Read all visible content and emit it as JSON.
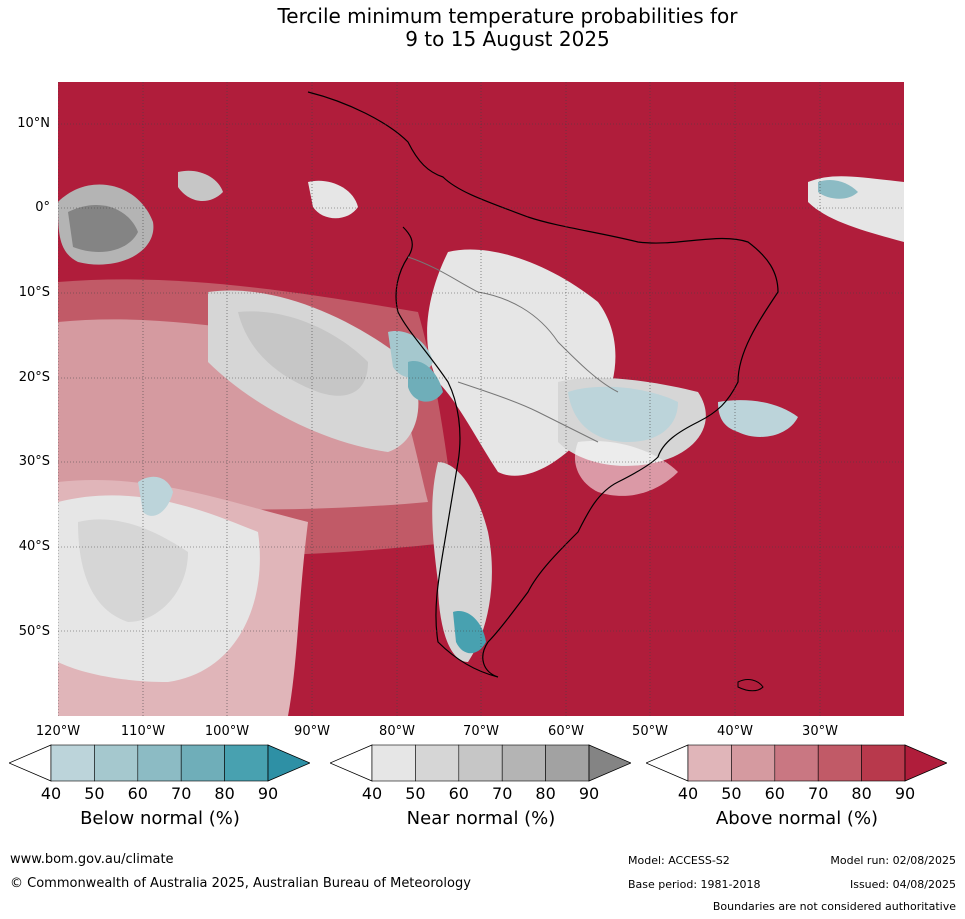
{
  "title": {
    "line1": "Tercile minimum temperature probabilities for",
    "line2": "9 to 15 August 2025"
  },
  "map": {
    "lat_labels": [
      "10°N",
      "0°",
      "10°S",
      "20°S",
      "30°S",
      "40°S",
      "50°S"
    ],
    "lon_labels": [
      "120°W",
      "110°W",
      "100°W",
      "90°W",
      "80°W",
      "70°W",
      "60°W",
      "50°W",
      "40°W",
      "30°W"
    ]
  },
  "colorbars": [
    {
      "title": "Below normal (%)",
      "ticks": [
        "40",
        "50",
        "60",
        "70",
        "80",
        "90"
      ],
      "colors": [
        "#bcd4da",
        "#a5c8ce",
        "#8cbbc4",
        "#6faeb9",
        "#48a1b0",
        "#2e90a5"
      ]
    },
    {
      "title": "Near normal (%)",
      "ticks": [
        "40",
        "50",
        "60",
        "70",
        "80",
        "90"
      ],
      "colors": [
        "#e6e6e6",
        "#d6d6d6",
        "#c6c6c6",
        "#b4b4b4",
        "#a2a2a2",
        "#848484"
      ]
    },
    {
      "title": "Above normal (%)",
      "ticks": [
        "40",
        "50",
        "60",
        "70",
        "80",
        "90"
      ],
      "colors": [
        "#e0b5b9",
        "#d59aa0",
        "#c97782",
        "#c15a67",
        "#b8394c",
        "#b01d3b"
      ]
    }
  ],
  "footer": {
    "website": "www.bom.gov.au/climate",
    "copyright": "© Commonwealth of Australia 2025, Australian Bureau of Meteorology",
    "model": "Model: ACCESS-S2",
    "base_period": "Base period: 1981-2018",
    "model_run": "Model run: 02/08/2025",
    "issued": "Issued: 04/08/2025",
    "disclaimer": "Boundaries are not considered authoritative"
  }
}
